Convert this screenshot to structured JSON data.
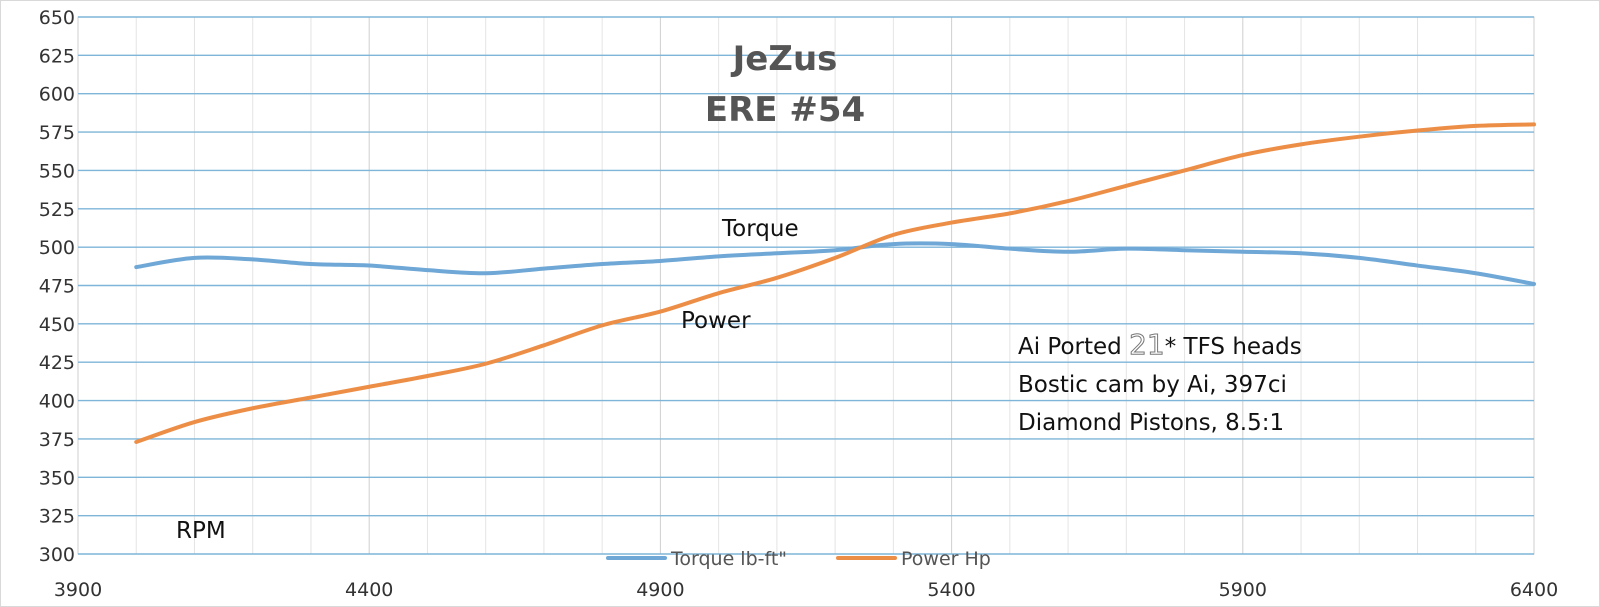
{
  "chart_data": {
    "type": "line",
    "title": "JeZus",
    "subtitle": "ERE #54",
    "xlabel": "RPM",
    "ylabel": "",
    "xlim": [
      3900,
      6400
    ],
    "ylim": [
      300,
      650
    ],
    "x_ticks": [
      "3900",
      "4400",
      "4900",
      "5400",
      "5900",
      "6400"
    ],
    "y_ticks": [
      "300",
      "325",
      "350",
      "375",
      "400",
      "425",
      "450",
      "475",
      "500",
      "525",
      "550",
      "575",
      "600",
      "625",
      "650"
    ],
    "grid": true,
    "legend_position": "bottom",
    "series": [
      {
        "name": "Torque lb-ft\"",
        "color": "#6fa8d6",
        "x": [
          4000,
          4100,
          4200,
          4300,
          4400,
          4500,
          4600,
          4700,
          4800,
          4900,
          5000,
          5100,
          5200,
          5300,
          5400,
          5500,
          5600,
          5700,
          5800,
          5900,
          6000,
          6100,
          6200,
          6300,
          6400
        ],
        "y": [
          487,
          493,
          492,
          489,
          488,
          485,
          483,
          486,
          489,
          491,
          494,
          496,
          498,
          502,
          502,
          499,
          497,
          499,
          498,
          497,
          496,
          493,
          488,
          483,
          476
        ]
      },
      {
        "name": "Power Hp",
        "color": "#ed8e47",
        "x": [
          4000,
          4100,
          4200,
          4300,
          4400,
          4500,
          4600,
          4700,
          4800,
          4900,
          5000,
          5100,
          5200,
          5300,
          5400,
          5500,
          5600,
          5700,
          5800,
          5900,
          6000,
          6100,
          6200,
          6300,
          6400
        ],
        "y": [
          373,
          386,
          395,
          402,
          409,
          416,
          424,
          436,
          449,
          458,
          470,
          480,
          493,
          508,
          516,
          522,
          530,
          540,
          550,
          560,
          567,
          572,
          576,
          579,
          580
        ]
      }
    ],
    "annotations": {
      "torque_label": "Torque",
      "power_label": "Power",
      "rpm_label": "RPM",
      "spec_line1_prefix": "Ai Ported ",
      "spec_line1_emph": "21",
      "spec_line1_suffix": "* TFS heads",
      "spec_line2": "Bostic cam by Ai, 397ci",
      "spec_line3": "Diamond Pistons, 8.5:1"
    }
  }
}
